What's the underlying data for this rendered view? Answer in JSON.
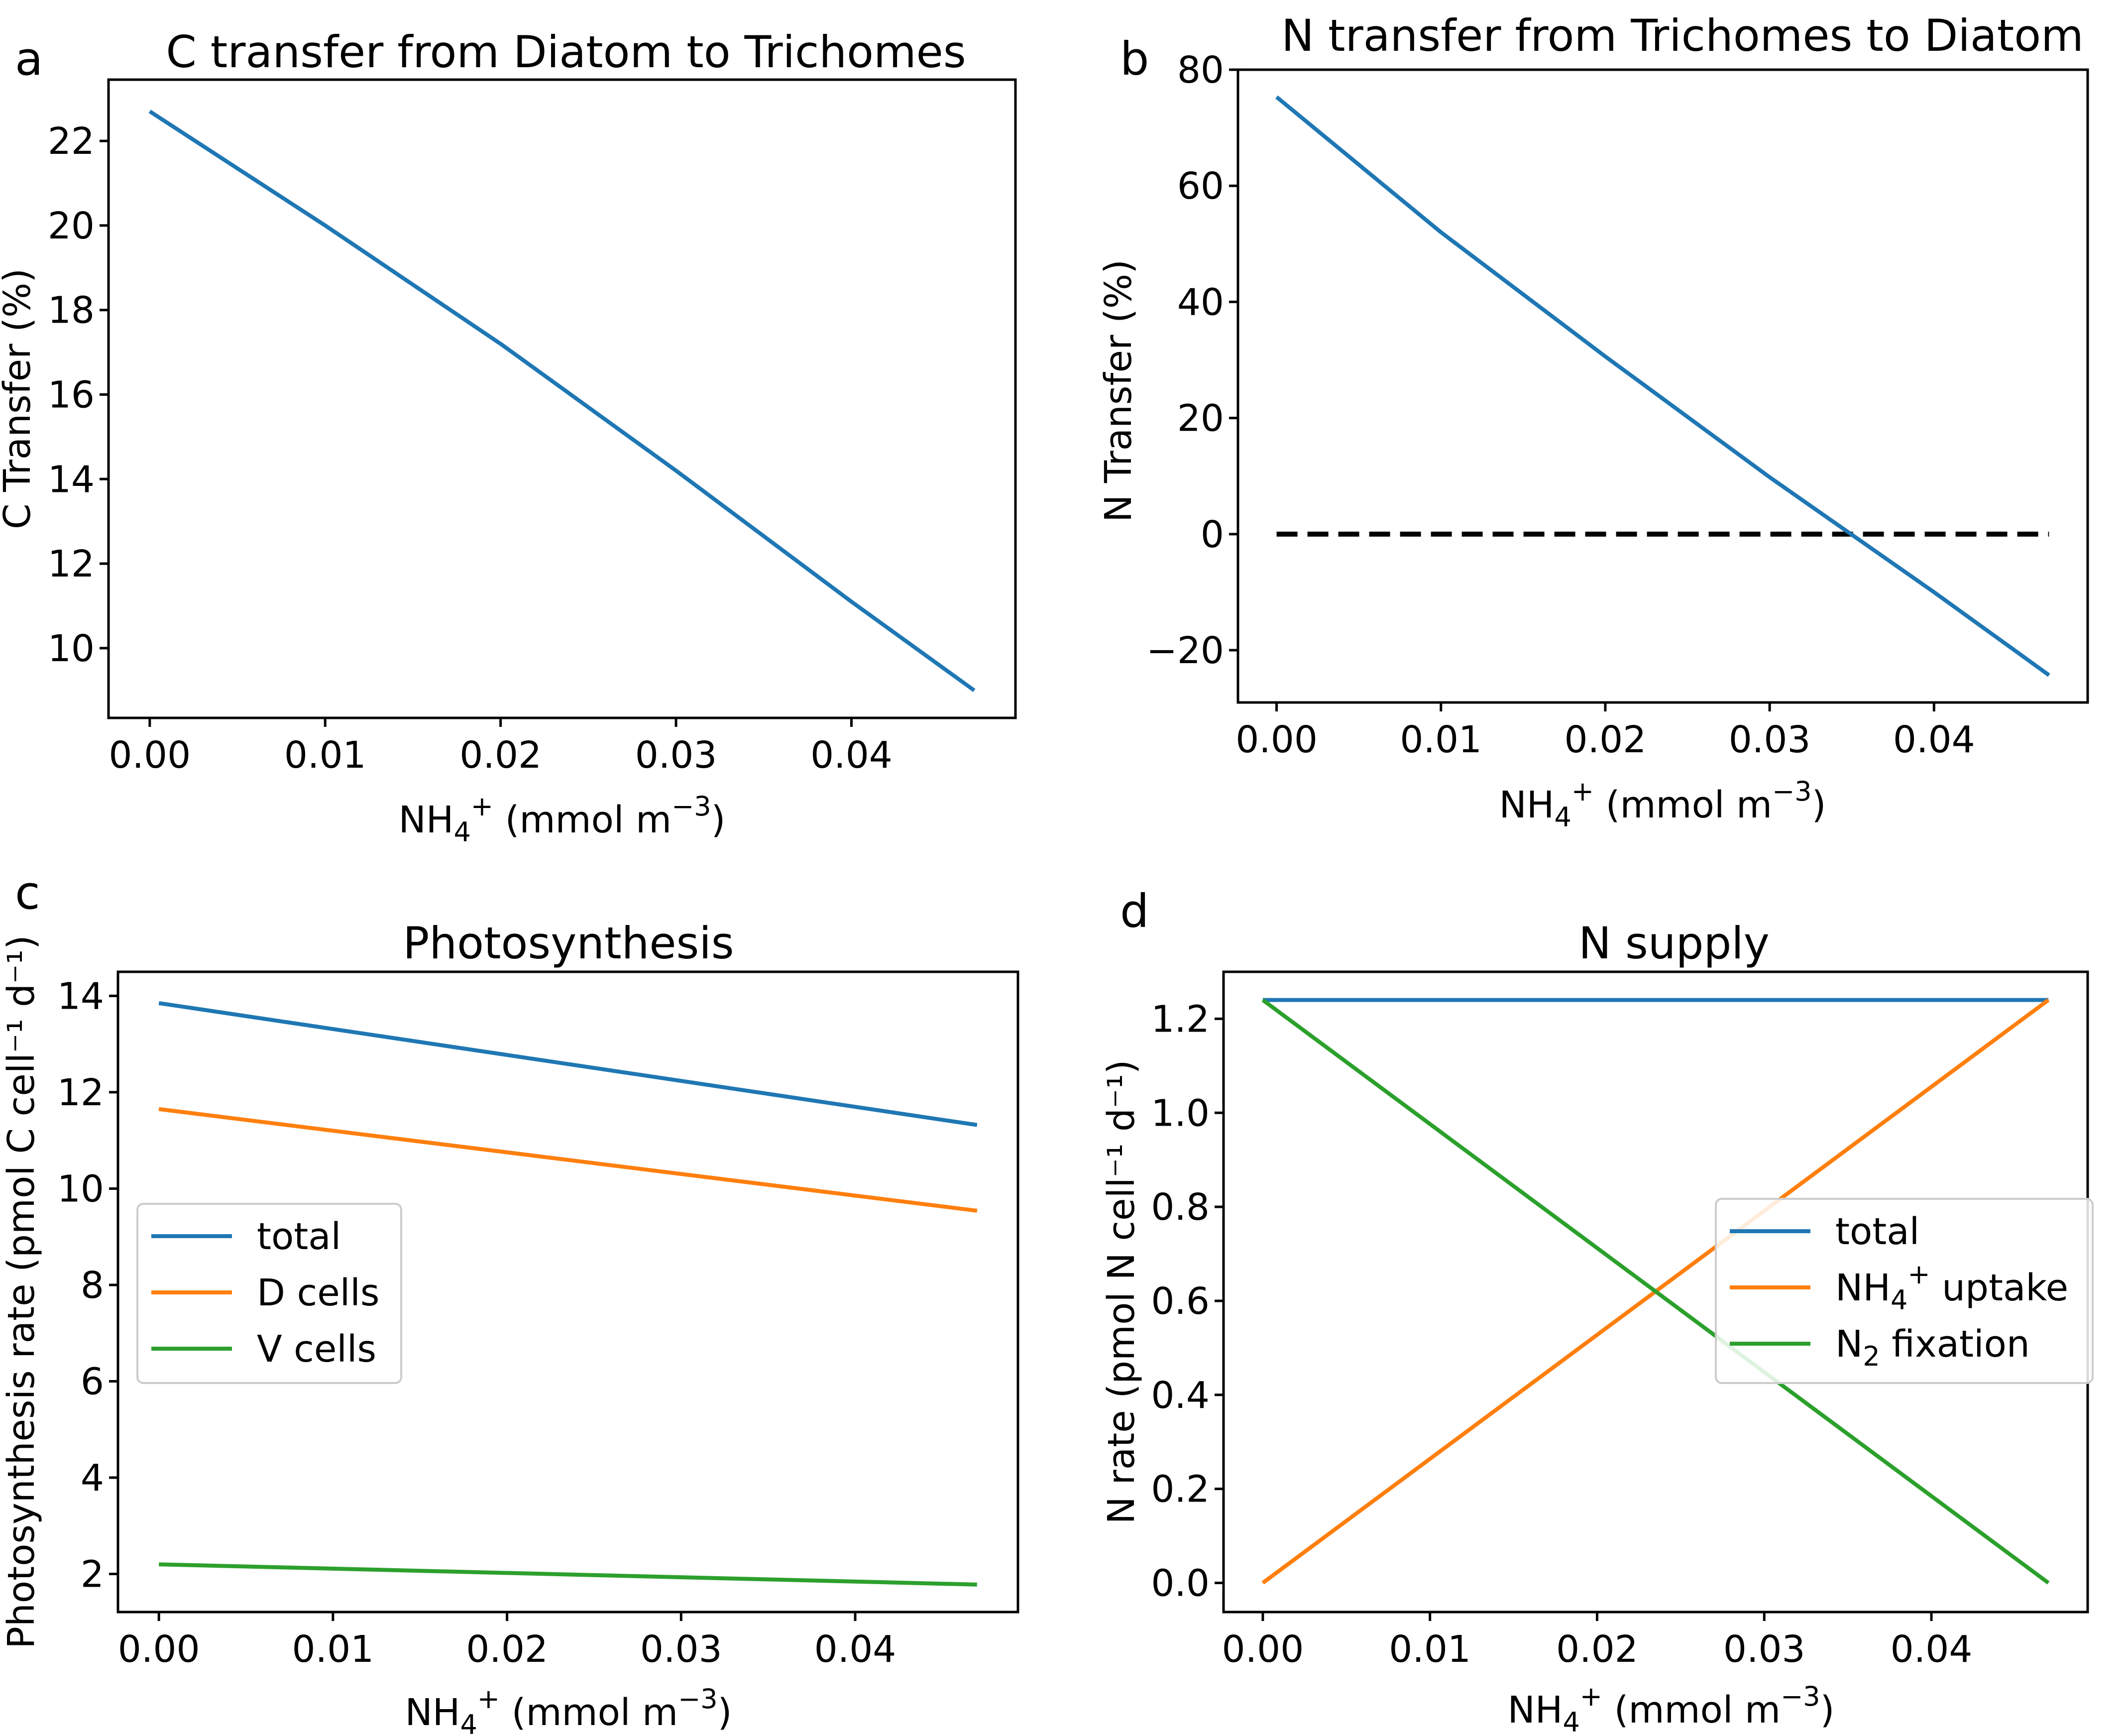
{
  "chart_data": [
    {
      "panel": "a",
      "type": "line",
      "title": "C transfer from Diatom to Trichomes",
      "xlabel": {
        "main": "NH",
        "sub": "4",
        "sup": "+",
        "rest": " (mmol m",
        "unit_sup": "−3",
        "close": ")"
      },
      "ylabel": "C Transfer (%)",
      "xlim": [
        -0.00235,
        0.04935
      ],
      "ylim": [
        8.35,
        23.45
      ],
      "xticks": [
        0.0,
        0.01,
        0.02,
        0.03,
        0.04
      ],
      "xtick_labels": [
        "0.00",
        "0.01",
        "0.02",
        "0.03",
        "0.04"
      ],
      "yticks": [
        10,
        12,
        14,
        16,
        18,
        20,
        22
      ],
      "ytick_labels": [
        "10",
        "12",
        "14",
        "16",
        "18",
        "20",
        "22"
      ],
      "series": [
        {
          "name": "C transfer",
          "color": "#1f77b4",
          "x": [
            0.0,
            0.01,
            0.02,
            0.03,
            0.04,
            0.047
          ],
          "y": [
            22.7,
            20.0,
            17.2,
            14.2,
            11.1,
            9.0
          ]
        }
      ],
      "reference_lines": [],
      "legend": null
    },
    {
      "panel": "b",
      "type": "line",
      "title": "N transfer from Trichomes to Diatom",
      "xlabel": {
        "main": "NH",
        "sub": "4",
        "sup": "+",
        "rest": " (mmol m",
        "unit_sup": "−3",
        "close": ")"
      },
      "ylabel": "N Transfer (%)",
      "xlim": [
        -0.00235,
        0.04935
      ],
      "ylim": [
        -29.0,
        80.0
      ],
      "xticks": [
        0.0,
        0.01,
        0.02,
        0.03,
        0.04
      ],
      "xtick_labels": [
        "0.00",
        "0.01",
        "0.02",
        "0.03",
        "0.04"
      ],
      "yticks": [
        -20,
        0,
        20,
        40,
        60,
        80
      ],
      "ytick_labels": [
        "−20",
        "0",
        "20",
        "40",
        "60",
        "80"
      ],
      "series": [
        {
          "name": "N transfer",
          "color": "#1f77b4",
          "x": [
            0.0,
            0.01,
            0.02,
            0.03,
            0.04,
            0.047
          ],
          "y": [
            75.3,
            52.0,
            30.6,
            9.8,
            -10.0,
            -24.3
          ]
        }
      ],
      "reference_lines": [
        {
          "orientation": "horizontal",
          "y": 0,
          "x_start": 0.0,
          "x_end": 0.047,
          "style": "dashed",
          "color": "#000000"
        }
      ],
      "legend": null
    },
    {
      "panel": "c",
      "type": "line",
      "title": "Photosynthesis",
      "xlabel": {
        "main": "NH",
        "sub": "4",
        "sup": "+",
        "rest": " (mmol m",
        "unit_sup": "−3",
        "close": ")"
      },
      "ylabel": "Photosynthesis rate (pmol C cell⁻¹ d⁻¹)",
      "xlim": [
        -0.00235,
        0.04935
      ],
      "ylim": [
        1.21,
        14.5
      ],
      "xticks": [
        0.0,
        0.01,
        0.02,
        0.03,
        0.04
      ],
      "xtick_labels": [
        "0.00",
        "0.01",
        "0.02",
        "0.03",
        "0.04"
      ],
      "yticks": [
        2,
        4,
        6,
        8,
        10,
        12,
        14
      ],
      "ytick_labels": [
        "2",
        "4",
        "6",
        "8",
        "10",
        "12",
        "14"
      ],
      "series": [
        {
          "name": "total",
          "color": "#1f77b4",
          "x": [
            0.0,
            0.047
          ],
          "y": [
            13.85,
            11.32
          ]
        },
        {
          "name": "D cells",
          "color": "#ff7f0e",
          "x": [
            0.0,
            0.047
          ],
          "y": [
            11.65,
            9.54
          ]
        },
        {
          "name": "V cells",
          "color": "#2ca02c",
          "x": [
            0.0,
            0.047
          ],
          "y": [
            2.2,
            1.78
          ]
        }
      ],
      "reference_lines": [],
      "legend": {
        "placement": "center-left",
        "entries": [
          {
            "label": "total",
            "color": "#1f77b4"
          },
          {
            "label": "D cells",
            "color": "#ff7f0e"
          },
          {
            "label": "V cells",
            "color": "#2ca02c"
          }
        ]
      }
    },
    {
      "panel": "d",
      "type": "line",
      "title": "N supply",
      "xlabel": {
        "main": "NH",
        "sub": "4",
        "sup": "+",
        "rest": " (mmol m",
        "unit_sup": "−3",
        "close": ")"
      },
      "ylabel": "N rate (pmol N cell⁻¹ d⁻¹)",
      "xlim": [
        -0.00235,
        0.04935
      ],
      "ylim": [
        -0.062,
        1.3
      ],
      "xticks": [
        0.0,
        0.01,
        0.02,
        0.03,
        0.04
      ],
      "xtick_labels": [
        "0.00",
        "0.01",
        "0.02",
        "0.03",
        "0.04"
      ],
      "yticks": [
        0.0,
        0.2,
        0.4,
        0.6,
        0.8,
        1.0,
        1.2
      ],
      "ytick_labels": [
        "0.0",
        "0.2",
        "0.4",
        "0.6",
        "0.8",
        "1.0",
        "1.2"
      ],
      "series": [
        {
          "name": "total",
          "color": "#1f77b4",
          "x": [
            0.0,
            0.047
          ],
          "y": [
            1.24,
            1.24
          ]
        },
        {
          "name": "NH4+ uptake",
          "color": "#ff7f0e",
          "x": [
            0.0,
            0.047
          ],
          "y": [
            0.0,
            1.24
          ]
        },
        {
          "name": "N2 fixation",
          "color": "#2ca02c",
          "x": [
            0.0,
            0.047
          ],
          "y": [
            1.24,
            0.0
          ]
        }
      ],
      "reference_lines": [],
      "legend": {
        "placement": "center-right",
        "entries": [
          {
            "label": "total",
            "color": "#1f77b4"
          },
          {
            "label": "NH4+ uptake",
            "color": "#ff7f0e"
          },
          {
            "label": "N2 fixation",
            "color": "#2ca02c"
          }
        ]
      }
    }
  ]
}
